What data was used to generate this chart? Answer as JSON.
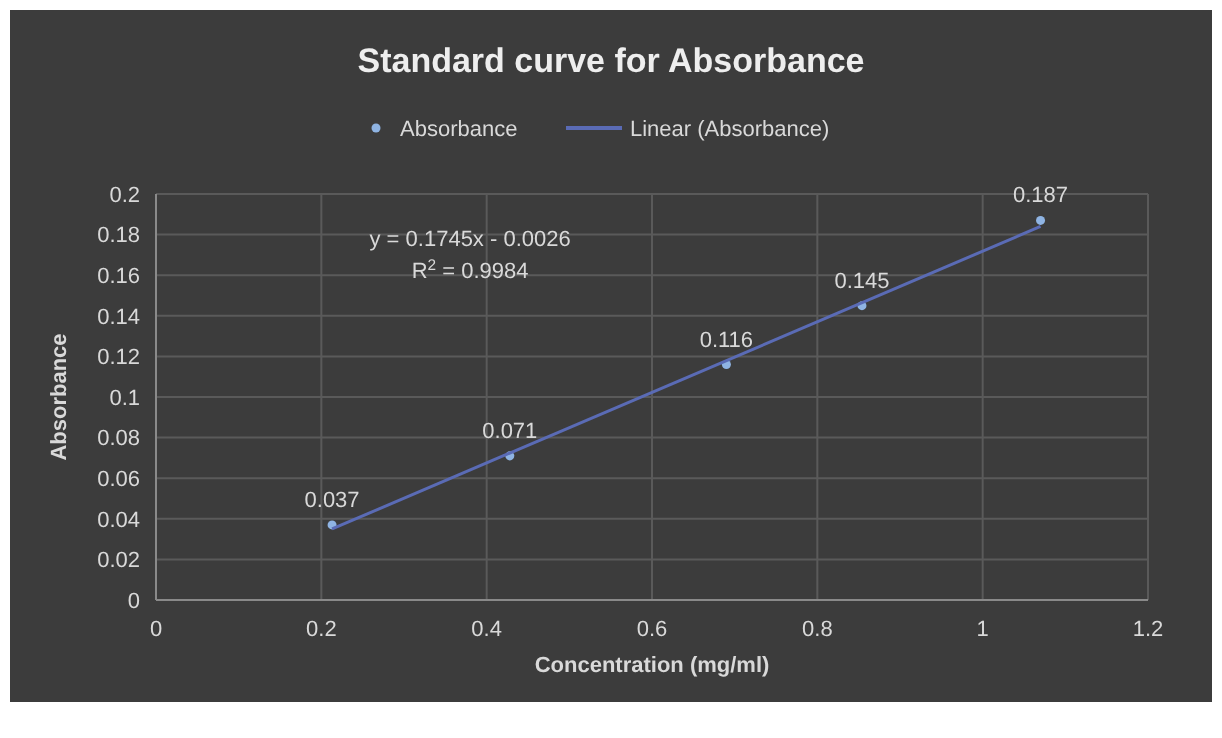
{
  "chart_data": {
    "type": "scatter",
    "title": "Standard curve for Absorbance",
    "xlabel": "Concentration (mg/ml)",
    "ylabel": "Absorbance",
    "x": [
      0.213,
      0.428,
      0.69,
      0.854,
      1.07
    ],
    "series": [
      {
        "name": "Absorbance",
        "marker": "circle",
        "color": "#8fb4e3",
        "values": [
          0.037,
          0.071,
          0.116,
          0.145,
          0.187
        ],
        "value_labels": [
          "0.037",
          "0.071",
          "0.116",
          "0.145",
          "0.187"
        ]
      },
      {
        "name": "Linear (Absorbance)",
        "type": "line",
        "color": "#5a6bb5",
        "x": [
          0.213,
          1.07
        ],
        "values": [
          0.035,
          0.184
        ]
      }
    ],
    "annotations": [
      "y = 0.1745x - 0.0026\nR$^{2}$ = 0.9984"
    ],
    "xlim": [
      0,
      1.2
    ],
    "xticks": [
      0,
      0.2,
      0.4,
      0.6,
      0.8,
      1,
      1.2
    ],
    "ylim": [
      0,
      0.2
    ],
    "yticks": [
      0,
      0.02,
      0.04,
      0.06,
      0.08,
      0.1,
      0.12,
      0.14,
      0.16,
      0.18,
      0.2
    ],
    "grid": true,
    "legend": "top"
  }
}
